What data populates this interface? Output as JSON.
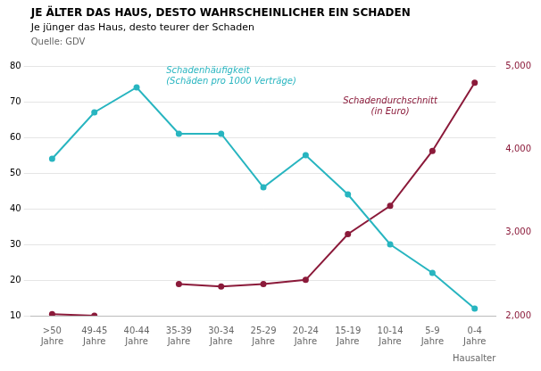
{
  "chart_data": {
    "type": "line",
    "title": "JE ÄLTER DAS HAUS, DESTO WAHRSCHEINLICHER EIN SCHADEN",
    "subtitle": "Je jünger das Haus, desto teurer der Schaden",
    "annotations": [
      "Quelle: GDV"
    ],
    "xlabel": "Hausalter",
    "categories": [
      ">50\nJahre",
      "49-45\nJahre",
      "40-44\nJahre",
      "35-39\nJahre",
      "30-34\nJahre",
      "25-29\nJahre",
      "20-24\nJahre",
      "15-19\nJahre",
      "10-14\nJahre",
      "5-9\nJahre",
      "0-4\nJahre"
    ],
    "series": [
      {
        "name": "Schadenhäufigkeit\n(Schäden pro 1000 Verträge)",
        "color": "#28B5C0",
        "marker": "circle",
        "values": [
          54,
          67,
          74,
          61,
          61,
          46,
          55,
          44,
          30,
          22,
          12
        ]
      },
      {
        "name": "Schadendurchschnitt\n(in Euro)",
        "color": "#8B1A3A",
        "marker": "circle",
        "axis": "y2",
        "values": [
          2020,
          2000,
          null,
          2380,
          2350,
          2380,
          2430,
          2980,
          3320,
          3980,
          4800
        ]
      }
    ],
    "ylim": [
      10,
      80
    ],
    "yticks": [
      10,
      20,
      30,
      40,
      50,
      60,
      70,
      80
    ],
    "y2lim": [
      2000,
      5000
    ],
    "y2ticks": [
      2000,
      3000,
      4000,
      5000
    ],
    "grid": true
  }
}
